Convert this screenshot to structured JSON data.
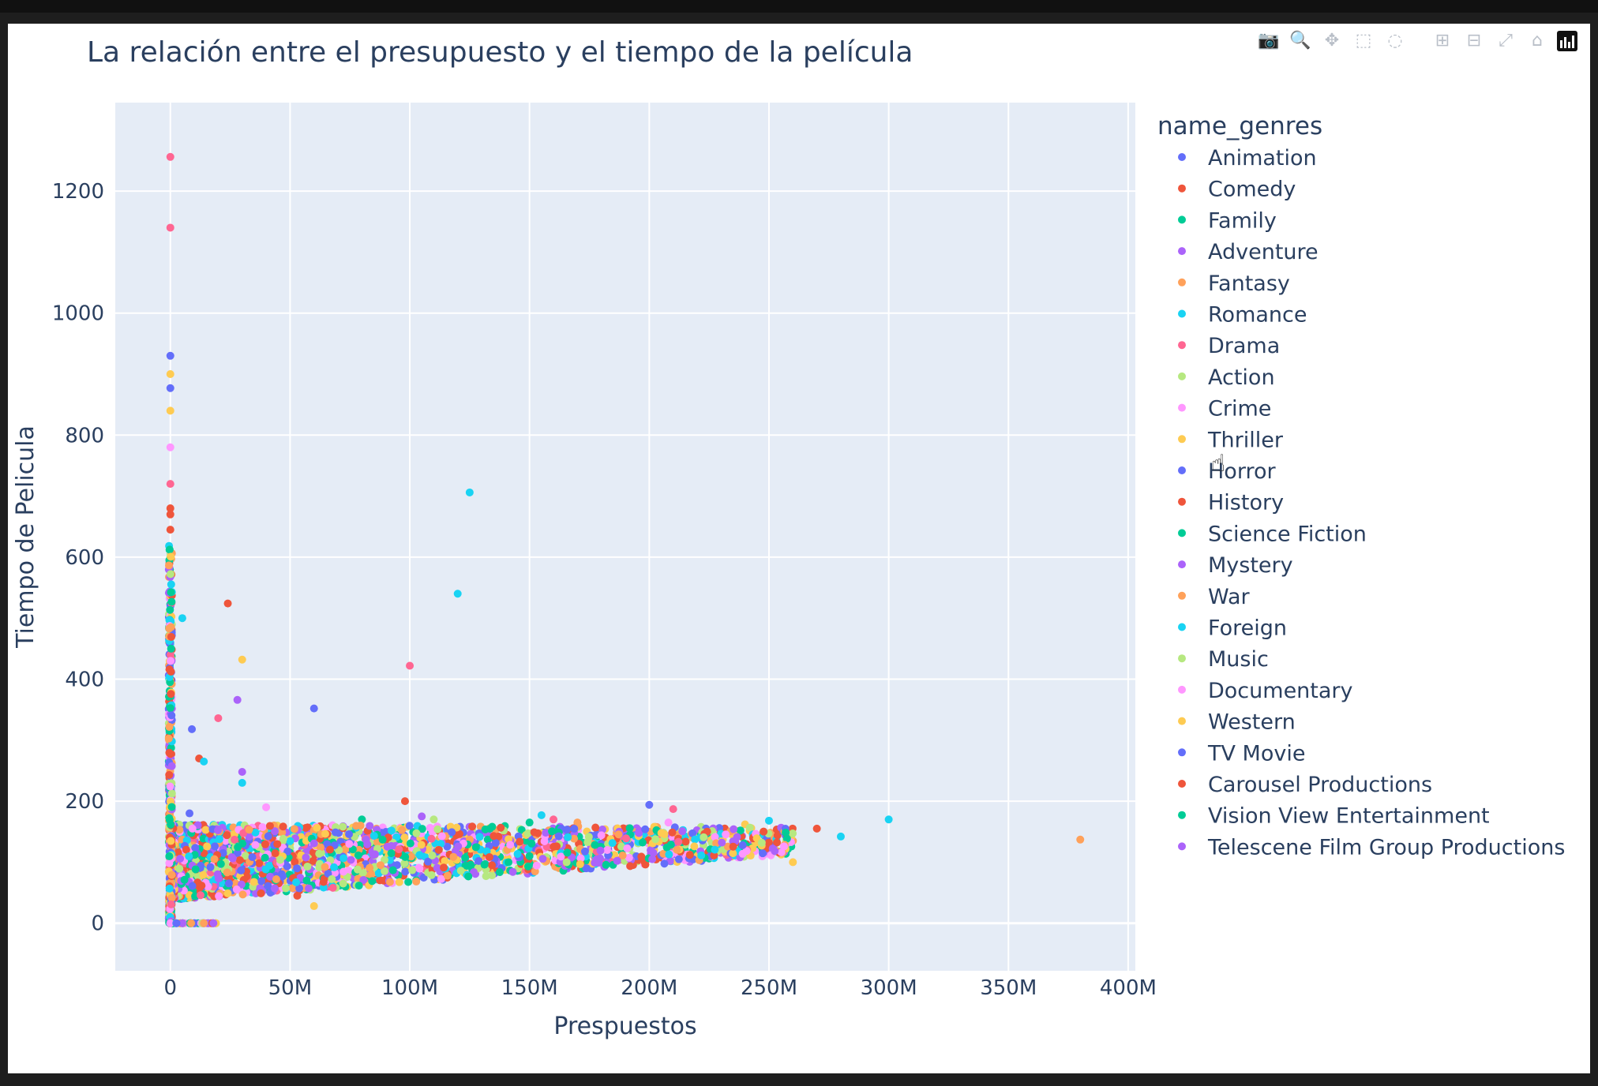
{
  "modebar": {
    "buttons": [
      {
        "name": "camera-icon",
        "glyph": "📷"
      },
      {
        "name": "zoom-icon",
        "glyph": "🔍"
      },
      {
        "name": "pan-icon",
        "glyph": "✥"
      },
      {
        "name": "box-select-icon",
        "glyph": "⬚"
      },
      {
        "name": "lasso-select-icon",
        "glyph": "◌"
      },
      {
        "name": "zoom-in-icon",
        "glyph": "⊞"
      },
      {
        "name": "zoom-out-icon",
        "glyph": "⊟"
      },
      {
        "name": "autoscale-icon",
        "glyph": "⤢"
      },
      {
        "name": "home-icon",
        "glyph": "⌂"
      }
    ]
  },
  "chart_data": {
    "type": "scatter",
    "title": "La relación entre el presupuesto y el tiempo de la película",
    "xlabel": "Prespuestos",
    "ylabel": "Tiempo de Pelicula",
    "xlim": [
      -23000000,
      403000000
    ],
    "ylim": [
      -78,
      1345
    ],
    "xticks": [
      0,
      50000000,
      100000000,
      150000000,
      200000000,
      250000000,
      300000000,
      350000000,
      400000000
    ],
    "xtick_labels": [
      "0",
      "50M",
      "100M",
      "150M",
      "200M",
      "250M",
      "300M",
      "350M",
      "400M"
    ],
    "yticks": [
      0,
      200,
      400,
      600,
      800,
      1000,
      1200
    ],
    "ytick_labels": [
      "0",
      "200",
      "400",
      "600",
      "800",
      "1000",
      "1200"
    ],
    "grid": true,
    "legend_title": "name_genres",
    "legend_position": "right",
    "series": [
      {
        "name": "Animation",
        "color": "#636efa",
        "points": [
          [
            0,
            877
          ],
          [
            0,
            540
          ],
          [
            60000000,
            352
          ],
          [
            9000000,
            318
          ],
          [
            200000000,
            194
          ],
          [
            0,
            930
          ],
          [
            0,
            430
          ]
        ]
      },
      {
        "name": "Comedy",
        "color": "#ef553b",
        "points": [
          [
            24000000,
            524
          ],
          [
            0,
            680
          ],
          [
            0,
            645
          ],
          [
            270000000,
            155
          ],
          [
            230000000,
            130
          ],
          [
            210000000,
            105
          ],
          [
            53000000,
            45
          ],
          [
            98000000,
            200
          ]
        ]
      },
      {
        "name": "Family",
        "color": "#00cc96",
        "points": [
          [
            225000000,
            106
          ],
          [
            150000000,
            165
          ],
          [
            120000000,
            90
          ],
          [
            80000000,
            170
          ]
        ]
      },
      {
        "name": "Adventure",
        "color": "#ab63fa",
        "points": [
          [
            28000000,
            366
          ],
          [
            30000000,
            248
          ],
          [
            225000000,
            150
          ],
          [
            190000000,
            145
          ],
          [
            105000000,
            175
          ]
        ]
      },
      {
        "name": "Fantasy",
        "color": "#ffa15a",
        "points": [
          [
            380000000,
            137
          ],
          [
            260000000,
            135
          ],
          [
            170000000,
            165
          ],
          [
            19000000,
            0
          ]
        ]
      },
      {
        "name": "Romance",
        "color": "#19d3f3",
        "points": [
          [
            125000000,
            706
          ],
          [
            120000000,
            540
          ],
          [
            5000000,
            500
          ],
          [
            300000000,
            170
          ],
          [
            280000000,
            142
          ],
          [
            250000000,
            168
          ],
          [
            155000000,
            177
          ]
        ]
      },
      {
        "name": "Drama",
        "color": "#ff6692",
        "points": [
          [
            0,
            1256
          ],
          [
            0,
            1140
          ],
          [
            100000000,
            422
          ],
          [
            0,
            720
          ],
          [
            0,
            500
          ],
          [
            20000000,
            336
          ],
          [
            210000000,
            187
          ],
          [
            160000000,
            170
          ]
        ]
      },
      {
        "name": "Action",
        "color": "#b6e880",
        "points": [
          [
            0,
            600
          ],
          [
            30000000,
            65
          ],
          [
            110000000,
            170
          ],
          [
            170000000,
            120
          ]
        ]
      },
      {
        "name": "Crime",
        "color": "#ff97ff",
        "points": [
          [
            0,
            780
          ],
          [
            40000000,
            190
          ],
          [
            208000000,
            165
          ],
          [
            140000000,
            140
          ]
        ]
      },
      {
        "name": "Thriller",
        "color": "#fecb52",
        "points": [
          [
            0,
            900
          ],
          [
            0,
            840
          ],
          [
            30000000,
            432
          ],
          [
            260000000,
            100
          ],
          [
            240000000,
            162
          ],
          [
            60000000,
            28
          ]
        ]
      },
      {
        "name": "Horror",
        "color": "#636efa",
        "points": [
          [
            8000000,
            180
          ],
          [
            25000000,
            110
          ],
          [
            70000000,
            95
          ],
          [
            0,
            60
          ]
        ]
      },
      {
        "name": "History",
        "color": "#ef553b",
        "points": [
          [
            0,
            670
          ],
          [
            12000000,
            270
          ],
          [
            45000000,
            150
          ],
          [
            130000000,
            110
          ]
        ]
      },
      {
        "name": "Science Fiction",
        "color": "#00cc96",
        "points": [
          [
            15000000,
            130
          ],
          [
            85000000,
            140
          ],
          [
            150000000,
            100
          ]
        ]
      },
      {
        "name": "Mystery",
        "color": "#ab63fa",
        "points": [
          [
            10000000,
            150
          ],
          [
            55000000,
            120
          ],
          [
            0,
            10
          ]
        ]
      },
      {
        "name": "War",
        "color": "#ffa15a",
        "points": [
          [
            20000000,
            160
          ],
          [
            90000000,
            135
          ]
        ]
      },
      {
        "name": "Foreign",
        "color": "#19d3f3",
        "points": [
          [
            0,
            460
          ],
          [
            14000000,
            265
          ],
          [
            30000000,
            230
          ]
        ]
      },
      {
        "name": "Music",
        "color": "#b6e880",
        "points": [
          [
            5000000,
            140
          ],
          [
            35000000,
            100
          ]
        ]
      },
      {
        "name": "Documentary",
        "color": "#ff97ff",
        "points": [
          [
            0,
            80
          ],
          [
            6000000,
            90
          ]
        ]
      },
      {
        "name": "Western",
        "color": "#fecb52",
        "points": [
          [
            18000000,
            120
          ],
          [
            50000000,
            130
          ]
        ]
      },
      {
        "name": "TV Movie",
        "color": "#636efa",
        "points": [
          [
            0,
            90
          ],
          [
            2000000,
            70
          ]
        ]
      },
      {
        "name": "Carousel Productions",
        "color": "#ef553b",
        "points": [
          [
            0,
            100
          ]
        ]
      },
      {
        "name": "Vision View Entertainment",
        "color": "#00cc96",
        "points": [
          [
            0,
            110
          ]
        ]
      },
      {
        "name": "Telescene Film Group Productions",
        "color": "#ab63fa",
        "points": [
          [
            0,
            105
          ]
        ]
      }
    ]
  }
}
